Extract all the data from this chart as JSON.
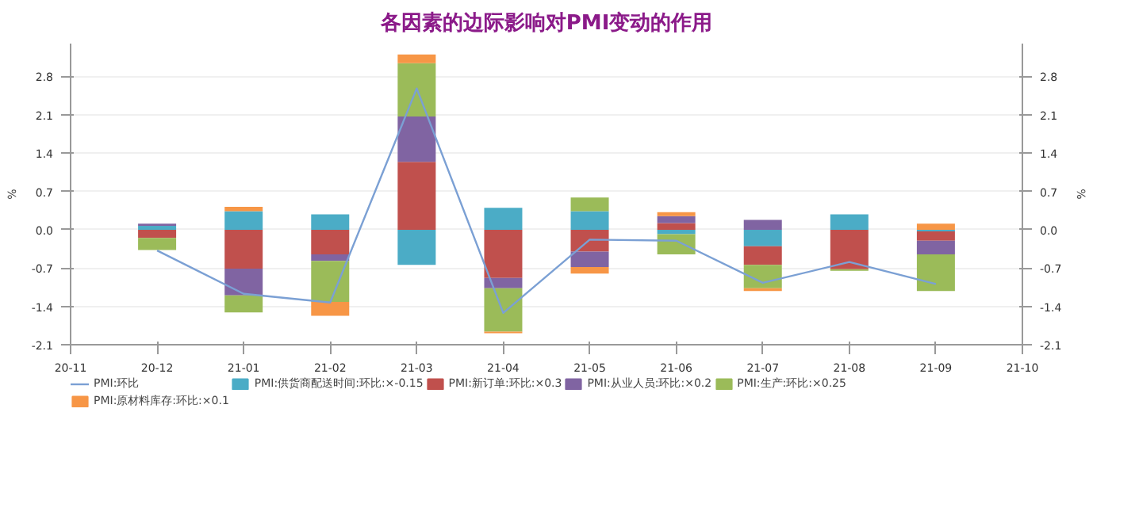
{
  "chart_data": {
    "type": "bar",
    "title": "各因素的边际影响对PMI变动的作用",
    "ylabel": "%",
    "y2label": "%",
    "categories": [
      "20-11",
      "20-12",
      "21-01",
      "21-02",
      "21-03",
      "21-04",
      "21-05",
      "21-06",
      "21-07",
      "21-08",
      "21-09",
      "21-10"
    ],
    "stacked": true,
    "ylim": [
      -2.1,
      3.4
    ],
    "yticks": [
      -2.1,
      -1.4,
      -0.7,
      {
        "value": 0,
        "label": "0.0"
      },
      0.7,
      1.4,
      2.1,
      2.8
    ],
    "y2lim": [
      -2.1,
      3.4
    ],
    "y2ticks": [
      -2.1,
      -1.4,
      -0.7,
      {
        "value": 0,
        "label": "0.0"
      },
      0.7,
      1.4,
      2.1,
      2.8
    ],
    "grid": "y",
    "legend": "bottom",
    "series": [
      {
        "name": "PMI:环比",
        "type": "line",
        "color": "#7ba0d4",
        "values": [
          null,
          -0.38,
          -1.17,
          -1.33,
          2.58,
          -1.52,
          -0.18,
          -0.2,
          -0.97,
          -0.59,
          -0.99,
          null
        ]
      },
      {
        "name": "PMI:供货商配送时间:环比:×-0.15",
        "color": "#4bacc6",
        "values": [
          null,
          0.07,
          0.34,
          0.28,
          -0.64,
          0.4,
          0.34,
          -0.08,
          -0.3,
          0.28,
          -0.03,
          null
        ]
      },
      {
        "name": "PMI:新订单:环比:×0.3",
        "color": "#c0504d",
        "values": [
          null,
          -0.15,
          -0.71,
          -0.45,
          1.24,
          -0.88,
          -0.4,
          0.12,
          -0.34,
          -0.72,
          -0.17,
          null
        ]
      },
      {
        "name": "PMI:从业人员:环比:×0.2",
        "color": "#8064a2",
        "values": [
          null,
          0.04,
          -0.49,
          -0.12,
          0.83,
          -0.19,
          -0.28,
          0.13,
          0.18,
          null,
          -0.25,
          null
        ]
      },
      {
        "name": "PMI:生产:环比:×0.25",
        "color": "#9bbb59",
        "values": [
          null,
          -0.22,
          -0.31,
          -0.75,
          0.97,
          -0.79,
          0.25,
          -0.37,
          -0.43,
          -0.03,
          -0.67,
          null
        ]
      },
      {
        "name": "PMI:原材料库存:环比:×0.1",
        "color": "#f79646",
        "values": [
          null,
          null,
          0.08,
          -0.25,
          0.16,
          -0.03,
          -0.12,
          0.07,
          -0.05,
          null,
          0.11,
          null
        ]
      }
    ]
  }
}
